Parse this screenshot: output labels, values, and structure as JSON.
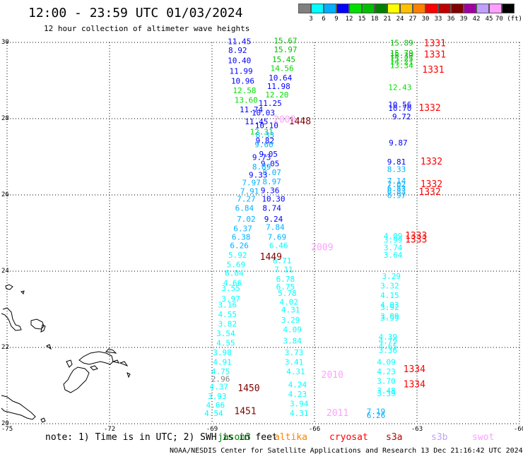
{
  "header": {
    "title": "12:00 - 23:59 UTC 01/03/2024",
    "subtitle": "12 hour collection of altimeter wave heights"
  },
  "color_scale": {
    "labels": [
      "3",
      "6",
      "9",
      "12",
      "15",
      "18",
      "21",
      "24",
      "27",
      "30",
      "33",
      "36",
      "39",
      "42",
      "45",
      "70 (ft)"
    ],
    "colors": [
      "#808080",
      "#00ffff",
      "#00b0ff",
      "#0000ff",
      "#00e000",
      "#00c000",
      "#008000",
      "#ffff00",
      "#ffc000",
      "#ff8000",
      "#ff0000",
      "#c00000",
      "#800000",
      "#a000a0",
      "#c0a0ff",
      "#ffa0ff",
      "#000000"
    ]
  },
  "axes": {
    "lon_ticks": [
      "-75",
      "-72",
      "-69",
      "-66",
      "-63",
      "-60"
    ],
    "lat_ticks": [
      "30",
      "28",
      "26",
      "24",
      "22",
      "20"
    ]
  },
  "footer": {
    "note": "note: 1) Time is in UTC; 2) SWH is in feet",
    "satellites": [
      {
        "name": "jason3",
        "color": "#008000"
      },
      {
        "name": "altika",
        "color": "#ff8000"
      },
      {
        "name": "cryosat",
        "color": "#ff0000"
      },
      {
        "name": "s3a",
        "color": "#c00000"
      },
      {
        "name": "s3b",
        "color": "#c0a0ff"
      },
      {
        "name": "swot",
        "color": "#ffa0ff"
      }
    ],
    "credit": "NOAA/NESDIS Center for Satellite Applications and Research   13 Dec 21:16:42 UTC 2024"
  },
  "map_data": {
    "lon_range": [
      -75,
      -60
    ],
    "lat_range": [
      20,
      30
    ],
    "swh_points": [
      {
        "lon": -68.2,
        "lat": 29.95,
        "v": "11.45",
        "c": "#0000ff"
      },
      {
        "lon": -66.85,
        "lat": 29.97,
        "v": "15.67",
        "c": "#00c000"
      },
      {
        "lon": -68.25,
        "lat": 29.72,
        "v": "8.92",
        "c": "#0000ff"
      },
      {
        "lon": -66.85,
        "lat": 29.74,
        "v": "15.97",
        "c": "#00c000"
      },
      {
        "lon": -68.2,
        "lat": 29.45,
        "v": "10.40",
        "c": "#0000ff"
      },
      {
        "lon": -66.9,
        "lat": 29.48,
        "v": "15.45",
        "c": "#00c000"
      },
      {
        "lon": -66.95,
        "lat": 29.25,
        "v": "14.56",
        "c": "#00e000"
      },
      {
        "lon": -68.15,
        "lat": 29.18,
        "v": "11.99",
        "c": "#0000ff"
      },
      {
        "lon": -67.0,
        "lat": 29.0,
        "v": "10.64",
        "c": "#0000ff"
      },
      {
        "lon": -68.1,
        "lat": 28.92,
        "v": "10.96",
        "c": "#0000ff"
      },
      {
        "lon": -67.05,
        "lat": 28.78,
        "v": "11.98",
        "c": "#0000ff"
      },
      {
        "lon": -68.05,
        "lat": 28.67,
        "v": "12.58",
        "c": "#00e000"
      },
      {
        "lon": -67.1,
        "lat": 28.56,
        "v": "12.20",
        "c": "#00e000"
      },
      {
        "lon": -68.0,
        "lat": 28.42,
        "v": "13.60",
        "c": "#00e000"
      },
      {
        "lon": -67.3,
        "lat": 28.33,
        "v": "11.25",
        "c": "#0000ff"
      },
      {
        "lon": -67.85,
        "lat": 28.17,
        "v": "11.74",
        "c": "#0000ff"
      },
      {
        "lon": -67.5,
        "lat": 28.08,
        "v": "10.03",
        "c": "#0000ff"
      },
      {
        "lon": -67.7,
        "lat": 27.85,
        "v": "11.45",
        "c": "#0000ff"
      },
      {
        "lon": -67.4,
        "lat": 27.75,
        "v": "10.10",
        "c": "#0000ff"
      },
      {
        "lon": -67.55,
        "lat": 27.58,
        "v": "12.31",
        "c": "#00e000"
      },
      {
        "lon": -67.45,
        "lat": 27.5,
        "v": "8.33",
        "c": "#00b0ff"
      },
      {
        "lon": -67.45,
        "lat": 27.35,
        "v": "9.82",
        "c": "#0000ff"
      },
      {
        "lon": -67.48,
        "lat": 27.25,
        "v": "9.60",
        "c": "#00b0ff"
      },
      {
        "lon": -67.35,
        "lat": 27.0,
        "v": "9.05",
        "c": "#0000ff"
      },
      {
        "lon": -67.55,
        "lat": 26.92,
        "v": "9.73",
        "c": "#0000ff"
      },
      {
        "lon": -67.3,
        "lat": 26.75,
        "v": "9.05",
        "c": "#0000ff"
      },
      {
        "lon": -67.55,
        "lat": 26.67,
        "v": "8.89",
        "c": "#00b0ff"
      },
      {
        "lon": -67.25,
        "lat": 26.52,
        "v": "8.07",
        "c": "#00b0ff"
      },
      {
        "lon": -67.65,
        "lat": 26.45,
        "v": "9.33",
        "c": "#0000ff"
      },
      {
        "lon": -67.25,
        "lat": 26.28,
        "v": "8.97",
        "c": "#00b0ff"
      },
      {
        "lon": -67.85,
        "lat": 26.25,
        "v": "7.97",
        "c": "#00b0ff"
      },
      {
        "lon": -67.3,
        "lat": 26.05,
        "v": "9.36",
        "c": "#0000ff"
      },
      {
        "lon": -67.9,
        "lat": 26.03,
        "v": "7.91",
        "c": "#00b0ff"
      },
      {
        "lon": -67.2,
        "lat": 25.82,
        "v": "10.30",
        "c": "#0000ff"
      },
      {
        "lon": -68.0,
        "lat": 25.82,
        "v": "7.27",
        "c": "#00b0ff"
      },
      {
        "lon": -67.25,
        "lat": 25.58,
        "v": "8.74",
        "c": "#0000ff"
      },
      {
        "lon": -68.05,
        "lat": 25.58,
        "v": "6.84",
        "c": "#00b0ff"
      },
      {
        "lon": -67.2,
        "lat": 25.3,
        "v": "9.24",
        "c": "#0000ff"
      },
      {
        "lon": -68.0,
        "lat": 25.3,
        "v": "7.02",
        "c": "#00b0ff"
      },
      {
        "lon": -67.15,
        "lat": 25.08,
        "v": "7.84",
        "c": "#00b0ff"
      },
      {
        "lon": -68.1,
        "lat": 25.05,
        "v": "6.37",
        "c": "#00b0ff"
      },
      {
        "lon": -67.1,
        "lat": 24.82,
        "v": "7.69",
        "c": "#00b0ff"
      },
      {
        "lon": -68.15,
        "lat": 24.82,
        "v": "6.38",
        "c": "#00b0ff"
      },
      {
        "lon": -67.05,
        "lat": 24.6,
        "v": "6.46",
        "c": "#00ffff"
      },
      {
        "lon": -68.2,
        "lat": 24.6,
        "v": "6.26",
        "c": "#00b0ff"
      },
      {
        "lon": -68.25,
        "lat": 24.35,
        "v": "5.92",
        "c": "#00ffff"
      },
      {
        "lon": -66.95,
        "lat": 24.2,
        "v": "6.71",
        "c": "#00ffff"
      },
      {
        "lon": -68.3,
        "lat": 24.1,
        "v": "5.69",
        "c": "#00ffff"
      },
      {
        "lon": -66.9,
        "lat": 23.97,
        "v": "7.11",
        "c": "#00ffff"
      },
      {
        "lon": -68.35,
        "lat": 23.88,
        "v": "6.04",
        "c": "#00ffff"
      },
      {
        "lon": -66.85,
        "lat": 23.72,
        "v": "6.78",
        "c": "#00ffff"
      },
      {
        "lon": -68.4,
        "lat": 23.62,
        "v": "4.66",
        "c": "#00ffff"
      },
      {
        "lon": -66.85,
        "lat": 23.52,
        "v": "6.75",
        "c": "#00ffff"
      },
      {
        "lon": -68.45,
        "lat": 23.48,
        "v": "3.55",
        "c": "#00ffff"
      },
      {
        "lon": -66.8,
        "lat": 23.35,
        "v": "5.78",
        "c": "#00ffff"
      },
      {
        "lon": -68.45,
        "lat": 23.2,
        "v": "3.97",
        "c": "#00ffff"
      },
      {
        "lon": -66.75,
        "lat": 23.12,
        "v": "4.02",
        "c": "#00ffff"
      },
      {
        "lon": -68.55,
        "lat": 23.05,
        "v": "3.16",
        "c": "#00ffff"
      },
      {
        "lon": -68.55,
        "lat": 22.8,
        "v": "4.55",
        "c": "#00ffff"
      },
      {
        "lon": -66.7,
        "lat": 22.92,
        "v": "4.31",
        "c": "#00ffff"
      },
      {
        "lon": -68.55,
        "lat": 22.55,
        "v": "3.82",
        "c": "#00ffff"
      },
      {
        "lon": -66.7,
        "lat": 22.65,
        "v": "3.29",
        "c": "#00ffff"
      },
      {
        "lon": -68.6,
        "lat": 22.3,
        "v": "3.54",
        "c": "#00ffff"
      },
      {
        "lon": -66.65,
        "lat": 22.4,
        "v": "4.09",
        "c": "#00ffff"
      },
      {
        "lon": -68.6,
        "lat": 22.05,
        "v": "4.55",
        "c": "#00ffff"
      },
      {
        "lon": -66.65,
        "lat": 22.1,
        "v": "3.84",
        "c": "#00ffff"
      },
      {
        "lon": -68.7,
        "lat": 21.8,
        "v": "3.98",
        "c": "#00ffff"
      },
      {
        "lon": -66.6,
        "lat": 21.8,
        "v": "3.73",
        "c": "#00ffff"
      },
      {
        "lon": -68.7,
        "lat": 21.55,
        "v": "4.91",
        "c": "#00ffff"
      },
      {
        "lon": -66.6,
        "lat": 21.55,
        "v": "3.41",
        "c": "#00ffff"
      },
      {
        "lon": -68.75,
        "lat": 21.3,
        "v": "4.75",
        "c": "#00ffff"
      },
      {
        "lon": -66.55,
        "lat": 21.3,
        "v": "4.31",
        "c": "#00ffff"
      },
      {
        "lon": -68.75,
        "lat": 21.1,
        "v": "2.96",
        "c": "#808080"
      },
      {
        "lon": -68.8,
        "lat": 20.9,
        "v": "4.37",
        "c": "#00ffff"
      },
      {
        "lon": -66.5,
        "lat": 20.95,
        "v": "4.24",
        "c": "#00ffff"
      },
      {
        "lon": -68.85,
        "lat": 20.65,
        "v": "3.93",
        "c": "#00ffff"
      },
      {
        "lon": -66.5,
        "lat": 20.7,
        "v": "4.23",
        "c": "#00ffff"
      },
      {
        "lon": -68.9,
        "lat": 20.42,
        "v": "4.66",
        "c": "#00ffff"
      },
      {
        "lon": -66.45,
        "lat": 20.45,
        "v": "3.94",
        "c": "#00ffff"
      },
      {
        "lon": -68.95,
        "lat": 20.2,
        "v": "4.54",
        "c": "#00ffff"
      },
      {
        "lon": -66.45,
        "lat": 20.2,
        "v": "4.31",
        "c": "#00ffff"
      },
      {
        "lon": -63.45,
        "lat": 29.92,
        "v": "15.89",
        "c": "#00c000"
      },
      {
        "lon": -63.45,
        "lat": 29.65,
        "v": "15.79",
        "c": "#00c000"
      },
      {
        "lon": -63.45,
        "lat": 29.58,
        "v": "15.39",
        "c": "#00c000"
      },
      {
        "lon": -63.45,
        "lat": 29.5,
        "v": "15.25",
        "c": "#00c000"
      },
      {
        "lon": -63.45,
        "lat": 29.42,
        "v": "14.21",
        "c": "#00e000"
      },
      {
        "lon": -63.45,
        "lat": 29.32,
        "v": "13.34",
        "c": "#00e000"
      },
      {
        "lon": -63.5,
        "lat": 28.75,
        "v": "12.43",
        "c": "#00e000"
      },
      {
        "lon": -63.5,
        "lat": 28.3,
        "v": "10.56",
        "c": "#0000ff"
      },
      {
        "lon": -63.5,
        "lat": 28.2,
        "v": "10.70",
        "c": "#0000ff"
      },
      {
        "lon": -63.45,
        "lat": 27.98,
        "v": "9.72",
        "c": "#0000ff"
      },
      {
        "lon": -63.55,
        "lat": 27.3,
        "v": "9.87",
        "c": "#0000ff"
      },
      {
        "lon": -63.6,
        "lat": 26.8,
        "v": "9.81",
        "c": "#0000ff"
      },
      {
        "lon": -63.6,
        "lat": 26.6,
        "v": "8.33",
        "c": "#00b0ff"
      },
      {
        "lon": -63.6,
        "lat": 26.3,
        "v": "7.14",
        "c": "#00b0ff"
      },
      {
        "lon": -63.6,
        "lat": 26.2,
        "v": "7.02",
        "c": "#00b0ff"
      },
      {
        "lon": -63.6,
        "lat": 26.1,
        "v": "6.83",
        "c": "#00b0ff"
      },
      {
        "lon": -63.6,
        "lat": 26.02,
        "v": "6.83",
        "c": "#00b0ff"
      },
      {
        "lon": -63.6,
        "lat": 25.92,
        "v": "6.97",
        "c": "#00b0ff"
      },
      {
        "lon": -63.7,
        "lat": 24.85,
        "v": "4.09",
        "c": "#00ffff"
      },
      {
        "lon": -63.7,
        "lat": 24.75,
        "v": "3.99",
        "c": "#00ffff"
      },
      {
        "lon": -63.7,
        "lat": 24.55,
        "v": "3.74",
        "c": "#00ffff"
      },
      {
        "lon": -63.7,
        "lat": 24.35,
        "v": "3.64",
        "c": "#00ffff"
      },
      {
        "lon": -63.75,
        "lat": 23.8,
        "v": "3.29",
        "c": "#00ffff"
      },
      {
        "lon": -63.8,
        "lat": 23.55,
        "v": "3.32",
        "c": "#00ffff"
      },
      {
        "lon": -63.8,
        "lat": 23.3,
        "v": "4.15",
        "c": "#00ffff"
      },
      {
        "lon": -63.8,
        "lat": 23.05,
        "v": "4.03",
        "c": "#00ffff"
      },
      {
        "lon": -63.8,
        "lat": 22.98,
        "v": "3.92",
        "c": "#00ffff"
      },
      {
        "lon": -63.8,
        "lat": 22.75,
        "v": "3.89",
        "c": "#00ffff"
      },
      {
        "lon": -63.8,
        "lat": 22.7,
        "v": "3.99",
        "c": "#00ffff"
      },
      {
        "lon": -63.85,
        "lat": 22.2,
        "v": "4.39",
        "c": "#00ffff"
      },
      {
        "lon": -63.85,
        "lat": 22.1,
        "v": "4.79",
        "c": "#00ffff"
      },
      {
        "lon": -63.85,
        "lat": 21.95,
        "v": "4.65",
        "c": "#00ffff"
      },
      {
        "lon": -63.85,
        "lat": 21.85,
        "v": "3.36",
        "c": "#00ffff"
      },
      {
        "lon": -63.9,
        "lat": 21.55,
        "v": "4.09",
        "c": "#00ffff"
      },
      {
        "lon": -63.9,
        "lat": 21.3,
        "v": "4.23",
        "c": "#00ffff"
      },
      {
        "lon": -63.9,
        "lat": 21.05,
        "v": "3.70",
        "c": "#00ffff"
      },
      {
        "lon": -63.9,
        "lat": 20.8,
        "v": "3.48",
        "c": "#00ffff"
      },
      {
        "lon": -63.9,
        "lat": 20.72,
        "v": "3.39",
        "c": "#00ffff"
      },
      {
        "lon": -64.2,
        "lat": 20.25,
        "v": "7.19",
        "c": "#00b0ff"
      },
      {
        "lon": -64.2,
        "lat": 20.15,
        "v": "6.26",
        "c": "#00b0ff"
      }
    ],
    "pass_labels": [
      {
        "lon": -62.8,
        "lat": 29.9,
        "t": "1331",
        "c": "#ff0000"
      },
      {
        "lon": -62.8,
        "lat": 29.6,
        "t": "1331",
        "c": "#ff0000"
      },
      {
        "lon": -62.85,
        "lat": 29.2,
        "t": "1331",
        "c": "#ff0000"
      },
      {
        "lon": -62.95,
        "lat": 28.2,
        "t": "1332",
        "c": "#ff0000"
      },
      {
        "lon": -62.9,
        "lat": 26.8,
        "t": "1332",
        "c": "#ff0000"
      },
      {
        "lon": -62.9,
        "lat": 26.2,
        "t": "1332",
        "c": "#ff0000"
      },
      {
        "lon": -62.95,
        "lat": 26.0,
        "t": "1332",
        "c": "#ff0000"
      },
      {
        "lon": -63.35,
        "lat": 24.85,
        "t": "1333",
        "c": "#ff0000"
      },
      {
        "lon": -63.35,
        "lat": 24.75,
        "t": "1333",
        "c": "#ff0000"
      },
      {
        "lon": -63.4,
        "lat": 21.35,
        "t": "1334",
        "c": "#ff0000"
      },
      {
        "lon": -63.4,
        "lat": 20.95,
        "t": "1334",
        "c": "#ff0000"
      },
      {
        "lon": -66.75,
        "lat": 27.85,
        "t": "1448",
        "c": "#800000"
      },
      {
        "lon": -67.6,
        "lat": 24.3,
        "t": "1449",
        "c": "#800000"
      },
      {
        "lon": -68.25,
        "lat": 20.85,
        "t": "1450",
        "c": "#800000"
      },
      {
        "lon": -68.35,
        "lat": 20.25,
        "t": "1451",
        "c": "#800000"
      },
      {
        "lon": -67.2,
        "lat": 27.9,
        "t": "2008",
        "c": "#ffa0ff"
      },
      {
        "lon": -66.1,
        "lat": 24.55,
        "t": "2009",
        "c": "#ffa0ff"
      },
      {
        "lon": -65.8,
        "lat": 21.2,
        "t": "2010",
        "c": "#ffa0ff"
      },
      {
        "lon": -65.65,
        "lat": 20.2,
        "t": "2011",
        "c": "#ffa0ff"
      }
    ]
  }
}
